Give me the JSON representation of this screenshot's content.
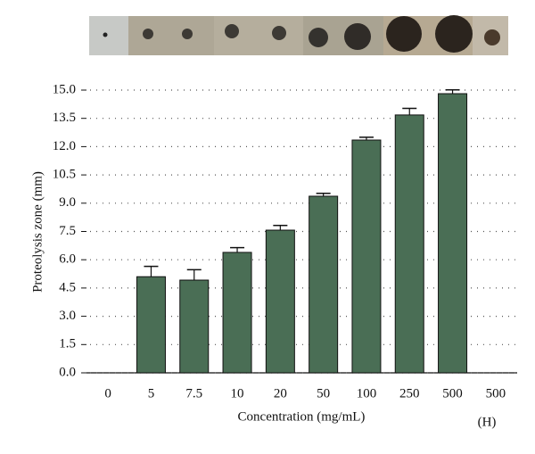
{
  "chart_data": {
    "type": "bar",
    "categories": [
      "0",
      "5",
      "7.5",
      "10",
      "20",
      "50",
      "100",
      "250",
      "500",
      "500"
    ],
    "values": [
      0,
      5.1,
      4.92,
      6.39,
      7.57,
      9.37,
      12.35,
      13.68,
      14.81,
      0
    ],
    "errors": [
      0,
      0.55,
      0.55,
      0.25,
      0.25,
      0.15,
      0.15,
      0.35,
      0.2,
      0
    ],
    "color": "#4a6e55",
    "x_label": "Concentration (mg/mL)",
    "y_label": "Proteolysis zone (mm)",
    "annotation": "(H)",
    "ylim": [
      0,
      15
    ],
    "yticks": [
      {
        "value": 0,
        "label": "0.0"
      },
      1.5,
      {
        "value": 3,
        "label": "3.0"
      },
      4.5,
      {
        "value": 6,
        "label": "6.0"
      },
      7.5,
      {
        "value": 9,
        "label": "9.0"
      },
      10.5,
      {
        "value": 12,
        "label": "12.0"
      },
      13.5,
      {
        "value": 15,
        "label": "15.0"
      }
    ],
    "grid": true
  }
}
